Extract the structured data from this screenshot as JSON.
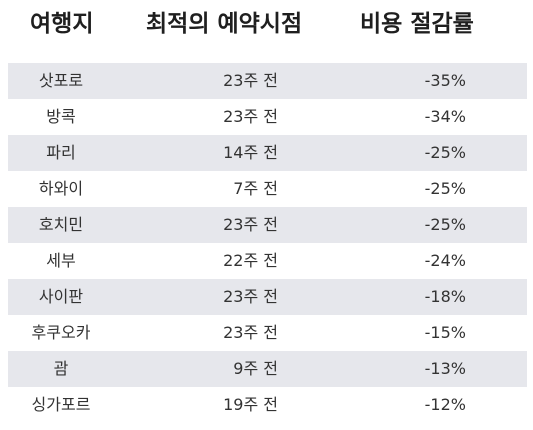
{
  "table": {
    "headers": {
      "destination": "여행지",
      "best_booking_time": "최적의 예약시점",
      "cost_savings": "비용 절감률"
    },
    "rows": [
      {
        "destination": "삿포로",
        "best_booking_time": "23주 전",
        "cost_savings": "-35%"
      },
      {
        "destination": "방콕",
        "best_booking_time": "23주 전",
        "cost_savings": "-34%"
      },
      {
        "destination": "파리",
        "best_booking_time": "14주 전",
        "cost_savings": "-25%"
      },
      {
        "destination": "하와이",
        "best_booking_time": "7주 전",
        "cost_savings": "-25%"
      },
      {
        "destination": "호치민",
        "best_booking_time": "23주 전",
        "cost_savings": "-25%"
      },
      {
        "destination": "세부",
        "best_booking_time": "22주 전",
        "cost_savings": "-24%"
      },
      {
        "destination": "사이판",
        "best_booking_time": "23주 전",
        "cost_savings": "-18%"
      },
      {
        "destination": "후쿠오카",
        "best_booking_time": "23주 전",
        "cost_savings": "-15%"
      },
      {
        "destination": "괌",
        "best_booking_time": "9주 전",
        "cost_savings": "-13%"
      },
      {
        "destination": "싱가포르",
        "best_booking_time": "19주 전",
        "cost_savings": "-12%"
      }
    ]
  },
  "colors": {
    "shaded_row": "#e6e7ec",
    "text": "#333333",
    "header_text": "#1f1f1f"
  }
}
